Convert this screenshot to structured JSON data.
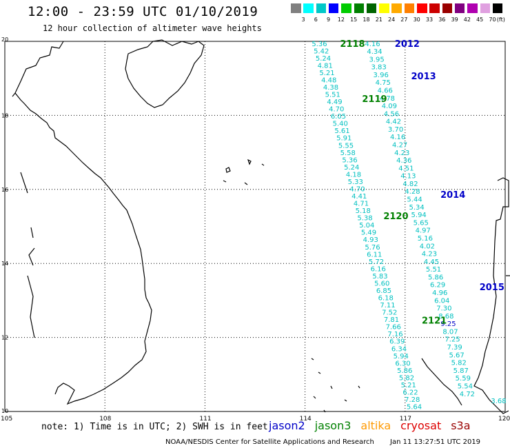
{
  "title": "12:00 - 23:59 UTC 01/10/2019",
  "subtitle": "12 hour collection of altimeter wave heights",
  "scale": {
    "colors": [
      "#808080",
      "#00ffff",
      "#00c8c8",
      "#0000ff",
      "#00cc00",
      "#008000",
      "#006400",
      "#ffff00",
      "#ffaa00",
      "#ff8000",
      "#ff0000",
      "#cc0000",
      "#990000",
      "#800080",
      "#b000b0",
      "#e0a0e0",
      "#000000"
    ],
    "labels": [
      "3",
      "6",
      "9",
      "12",
      "15",
      "18",
      "21",
      "24",
      "27",
      "30",
      "33",
      "36",
      "39",
      "42",
      "45",
      "70"
    ],
    "unit": "(ft)"
  },
  "axes": {
    "x_ticks": [
      "105",
      "108",
      "111",
      "114",
      "117",
      "120"
    ],
    "y_ticks": [
      "20",
      "18",
      "16",
      "14",
      "12",
      "10"
    ]
  },
  "tracks": [
    {
      "label": "2012",
      "sat": "jason2",
      "color": "#0000c8",
      "label_lon": 116.69,
      "label_lat": 19.93,
      "start": [
        116.04,
        19.93
      ],
      "end": [
        118.88,
        10.47
      ],
      "values": [
        "4.16",
        "4.34",
        "3.95",
        "3.83",
        "3.96",
        "4.75",
        "4.66",
        "4.78",
        "4.09",
        "4.56",
        "4.42",
        "3.70",
        "4.16",
        "4.27",
        "4.23",
        "4.36",
        "4.51",
        "4.13",
        "4.82",
        "4.28",
        "5.44",
        "5.34",
        "5.94",
        "5.65",
        "4.97",
        "5.16",
        "4.02",
        "4.23",
        "4.45",
        "5.51",
        "5.86",
        "6.29",
        "4.96",
        "6.04",
        "7.30",
        "8.68",
        "9.25",
        "8.07",
        "7.25",
        "7.39",
        "5.67",
        "5.82",
        "5.87",
        "5.59",
        "5.54",
        "4.72"
      ]
    },
    {
      "label": "2013",
      "sat": "jason2",
      "color": "#0000c8",
      "label_lon": 117.18,
      "label_lat": 19.05,
      "values": []
    },
    {
      "label": "2014",
      "sat": "jason2",
      "color": "#0000c8",
      "label_lon": 118.06,
      "label_lat": 15.85,
      "values": []
    },
    {
      "label": "2015",
      "sat": "jason2",
      "color": "#0000c8",
      "label_lon": 119.23,
      "label_lat": 13.35,
      "values": []
    },
    {
      "label": "2118",
      "sat": "jason3",
      "color": "#008000",
      "label_lon": 115.05,
      "label_lat": 19.93,
      "start": [
        114.45,
        19.93
      ],
      "end": [
        117.29,
        10.12
      ],
      "values": [
        "5.36",
        "5.42",
        "5.24",
        "4.81",
        "5.21",
        "4.48",
        "4.38",
        "5.51",
        "4.49",
        "4.70",
        "6.05",
        "5.40",
        "5.61",
        "5.91",
        "5.55",
        "5.58",
        "5.36",
        "5.24",
        "4.18",
        "5.33",
        "4.70",
        "4.41",
        "4.71",
        "5.18",
        "5.38",
        "5.04",
        "5.49",
        "4.93",
        "5.76",
        "6.11",
        "5.72",
        "6.16",
        "5.83",
        "5.60",
        "6.85",
        "6.18",
        "7.11",
        "7.52",
        "7.81",
        "7.66",
        "7.16",
        "6.39",
        "6.34",
        "5.94",
        "6.30",
        "5.86",
        "5.82",
        "5.21",
        "6.22",
        "7.28",
        "5.64"
      ]
    },
    {
      "label": "2119",
      "sat": "jason3",
      "color": "#008000",
      "label_lon": 115.71,
      "label_lat": 18.44,
      "values": []
    },
    {
      "label": "2120",
      "sat": "jason3",
      "color": "#008000",
      "label_lon": 116.35,
      "label_lat": 15.27,
      "values": []
    },
    {
      "label": "2121",
      "sat": "jason3",
      "color": "#008000",
      "label_lon": 117.5,
      "label_lat": 12.45,
      "values": []
    }
  ],
  "extra_values": [
    {
      "value": "3.68",
      "color": "#00c0c0",
      "lon": 119.78,
      "lat": 10.28
    }
  ],
  "note": "note: 1) Time is in UTC; 2) SWH is in feet",
  "satellites": [
    {
      "name": "jason2",
      "color": "#0000c8"
    },
    {
      "name": "jason3",
      "color": "#008000"
    },
    {
      "name": "altika",
      "color": "#ff9900"
    },
    {
      "name": "cryosat",
      "color": "#dd0000"
    },
    {
      "name": "s3a",
      "color": "#990000"
    }
  ],
  "credit": "NOAA/NESDIS Center for Satellite Applications and Research",
  "timestamp": "Jan 11 13:27:51 UTC 2019"
}
